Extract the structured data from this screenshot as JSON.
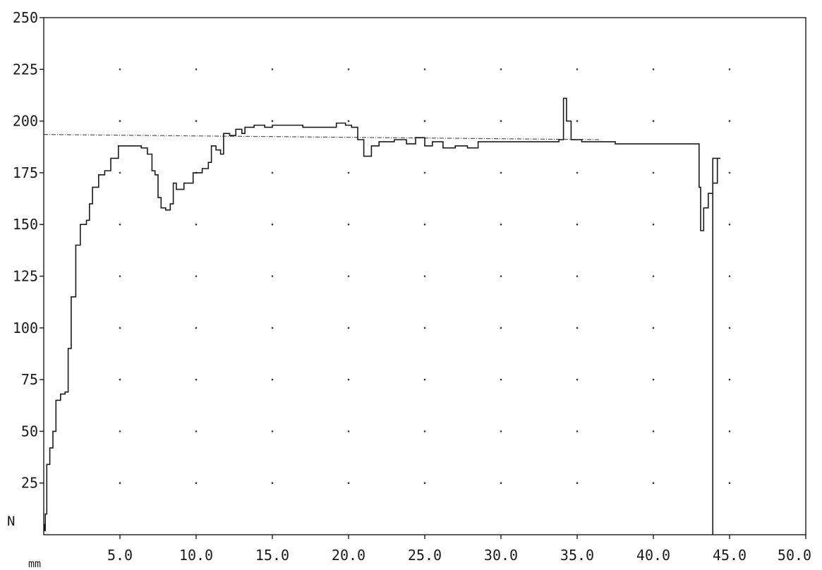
{
  "chart_data": {
    "type": "line",
    "title": "",
    "xlabel": "mm",
    "ylabel": "N",
    "xlim": [
      0,
      50
    ],
    "ylim": [
      0,
      250
    ],
    "grid": "dotted",
    "x_ticks": [
      "5.0",
      "10.0",
      "15.0",
      "20.0",
      "25.0",
      "30.0",
      "35.0",
      "40.0",
      "45.0",
      "50.0"
    ],
    "y_ticks": [
      "25",
      "50",
      "75",
      "100",
      "125",
      "150",
      "175",
      "200",
      "225",
      "250"
    ],
    "colors": {
      "line": "#1a1a1a",
      "reference": "#555555",
      "frame": "#1a1a1a",
      "grid": "#333333"
    },
    "reference_line": {
      "x": [
        0,
        36.5
      ],
      "y": [
        193.5,
        191
      ]
    },
    "series": [
      {
        "values": [
          [
            0,
            5
          ],
          [
            0.05,
            2
          ],
          [
            0.1,
            10
          ],
          [
            0.2,
            34
          ],
          [
            0.4,
            42
          ],
          [
            0.6,
            50
          ],
          [
            0.8,
            65
          ],
          [
            1.1,
            68
          ],
          [
            1.4,
            69
          ],
          [
            1.6,
            90
          ],
          [
            1.8,
            115
          ],
          [
            2.1,
            140
          ],
          [
            2.4,
            150
          ],
          [
            2.8,
            152
          ],
          [
            3.0,
            160
          ],
          [
            3.2,
            168
          ],
          [
            3.6,
            174
          ],
          [
            4.0,
            176
          ],
          [
            4.4,
            182
          ],
          [
            4.9,
            188
          ],
          [
            5.5,
            188
          ],
          [
            6.4,
            187
          ],
          [
            6.8,
            184
          ],
          [
            7.1,
            176
          ],
          [
            7.3,
            174
          ],
          [
            7.5,
            163
          ],
          [
            7.7,
            158
          ],
          [
            8.0,
            157
          ],
          [
            8.3,
            160
          ],
          [
            8.5,
            170
          ],
          [
            8.7,
            167
          ],
          [
            9.2,
            170
          ],
          [
            9.8,
            175
          ],
          [
            10.4,
            177
          ],
          [
            10.8,
            180
          ],
          [
            11.0,
            188
          ],
          [
            11.3,
            186
          ],
          [
            11.6,
            184
          ],
          [
            11.8,
            194
          ],
          [
            12.2,
            193
          ],
          [
            12.6,
            196
          ],
          [
            13.0,
            194
          ],
          [
            13.2,
            197
          ],
          [
            13.8,
            198
          ],
          [
            14.5,
            197
          ],
          [
            15.0,
            198
          ],
          [
            16.2,
            198
          ],
          [
            17.0,
            197
          ],
          [
            18.5,
            197
          ],
          [
            19.2,
            199
          ],
          [
            19.8,
            198
          ],
          [
            20.2,
            197
          ],
          [
            20.6,
            191
          ],
          [
            21.0,
            183
          ],
          [
            21.5,
            188
          ],
          [
            22.0,
            190
          ],
          [
            23.0,
            191
          ],
          [
            23.8,
            189
          ],
          [
            24.4,
            192
          ],
          [
            25.0,
            188
          ],
          [
            25.5,
            190
          ],
          [
            26.2,
            187
          ],
          [
            27.0,
            188
          ],
          [
            27.8,
            187
          ],
          [
            28.5,
            190
          ],
          [
            30.0,
            190
          ],
          [
            33.5,
            190
          ],
          [
            33.8,
            191
          ],
          [
            34.1,
            211
          ],
          [
            34.3,
            200
          ],
          [
            34.6,
            191
          ],
          [
            35.3,
            190
          ],
          [
            37.5,
            189
          ],
          [
            40.5,
            189
          ],
          [
            42.8,
            189
          ],
          [
            43.0,
            168
          ],
          [
            43.1,
            147
          ],
          [
            43.3,
            158
          ],
          [
            43.6,
            165
          ],
          [
            43.9,
            170
          ],
          [
            44.2,
            182
          ],
          [
            44.4,
            182
          ],
          [
            43.9,
            0
          ]
        ]
      }
    ]
  }
}
